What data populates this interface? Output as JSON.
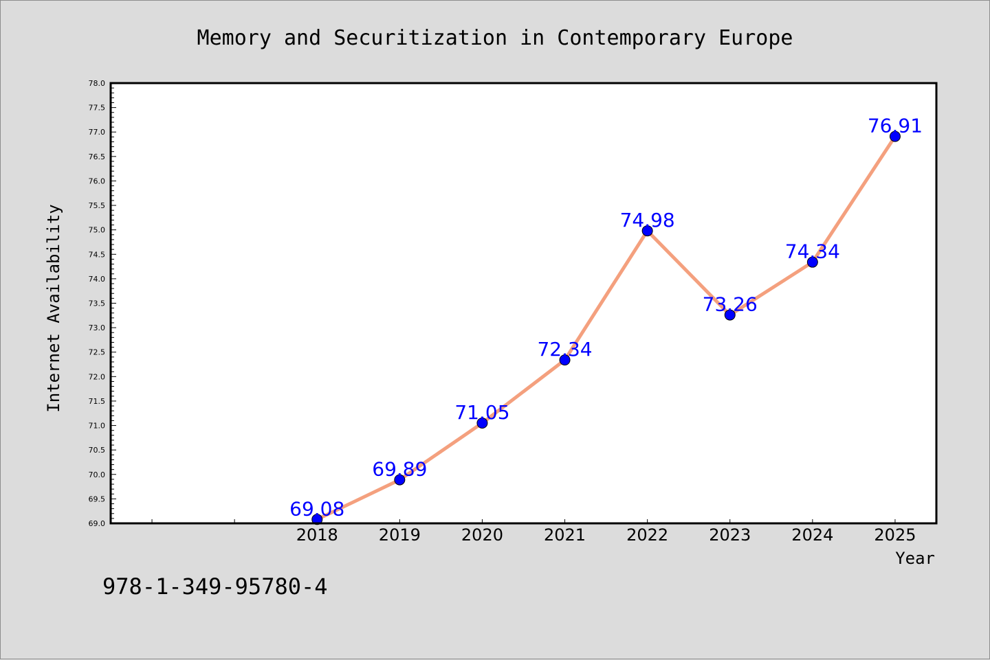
{
  "chart_data": {
    "type": "line",
    "title": "Memory and Securitization in Contemporary Europe",
    "xlabel": "Year",
    "ylabel": "Internet Availability",
    "x": [
      2018,
      2019,
      2020,
      2021,
      2022,
      2023,
      2024,
      2025
    ],
    "series": [
      {
        "values": [
          69.08,
          69.89,
          71.05,
          72.34,
          74.98,
          73.26,
          74.34,
          76.91
        ],
        "labels": [
          "69.08",
          "69.89",
          "71.05",
          "72.34",
          "74.98",
          "73.26",
          "74.34",
          "76.91"
        ],
        "line_color": "#f4a07e",
        "marker_color": "#0000ff",
        "label_color": "#0000ff"
      }
    ],
    "x_tick_labels": [
      "2018",
      "2019",
      "2020",
      "2021",
      "2022",
      "2023",
      "2024",
      "2025"
    ],
    "ylim": [
      69.0,
      78.0
    ],
    "y_tick_labels": [
      "69.0",
      "69.5",
      "70.0",
      "70.5",
      "71.0",
      "71.5",
      "72.0",
      "72.5",
      "73.0",
      "73.5",
      "74.0",
      "74.5",
      "75.0",
      "75.5",
      "76.0",
      "76.5",
      "77.0",
      "77.5",
      "78.0"
    ],
    "grid": false,
    "legend": "none"
  },
  "footer": {
    "isbn": "978-1-349-95780-4"
  },
  "colors": {
    "page_background": "#dcdcdc",
    "plot_background": "#ffffff",
    "axes_border": "#000000"
  }
}
